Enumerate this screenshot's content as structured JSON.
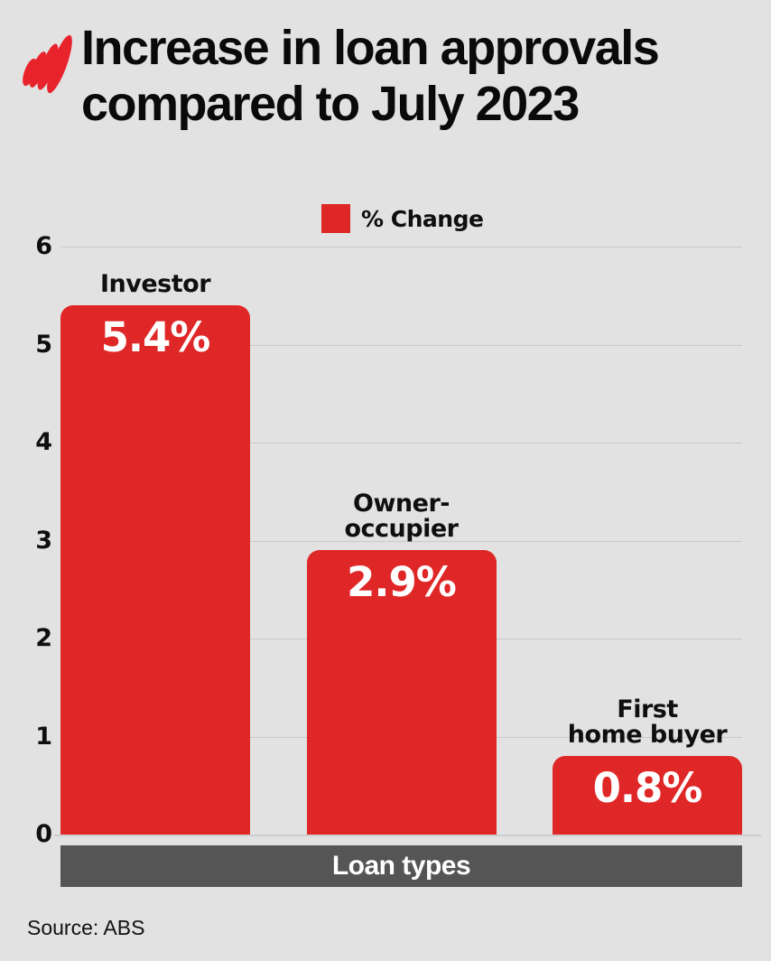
{
  "header": {
    "title_lines": [
      "Increase in loan approvals",
      "compared to July 2023"
    ],
    "logo_name": "sbs-logo"
  },
  "legend": {
    "label": "% Change",
    "swatch_color": "#e02727"
  },
  "chart_data": {
    "type": "bar",
    "title": "Increase in loan approvals compared to July 2023",
    "series_name": "% Change",
    "categories": [
      "Investor",
      "Owner-occupier",
      "First home buyer"
    ],
    "category_label_lines": [
      [
        "Investor"
      ],
      [
        "Owner-occupier"
      ],
      [
        "First",
        "home buyer"
      ]
    ],
    "values": [
      5.4,
      2.9,
      0.8
    ],
    "value_labels": [
      "5.4%",
      "2.9%",
      "0.8%"
    ],
    "xlabel": "Loan types",
    "ylabel": "",
    "ylim": [
      0,
      6
    ],
    "yticks": [
      0,
      1,
      2,
      3,
      4,
      5,
      6
    ],
    "grid": true,
    "legend_position": "top",
    "bar_color": "#e02727"
  },
  "footer": {
    "source": "Source: ABS"
  },
  "colors": {
    "background": "#e2e2e2",
    "bar_red": "#e02727",
    "logo_red": "#e8232b",
    "xaxis_bar": "#555555",
    "gridline": "#c9c9c9",
    "text": "#0f0f0f"
  }
}
